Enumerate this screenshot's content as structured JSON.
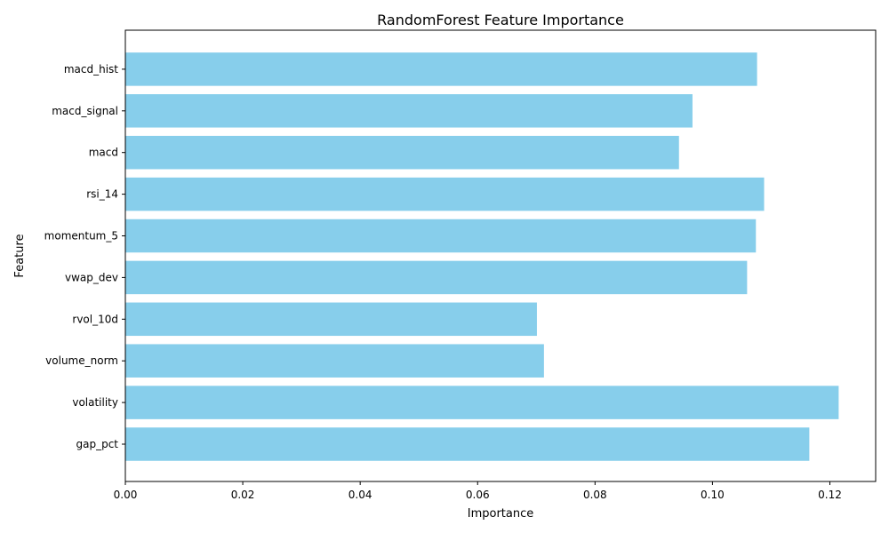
{
  "chart_data": {
    "type": "bar",
    "orientation": "horizontal",
    "title": "RandomForest Feature Importance",
    "xlabel": "Importance",
    "ylabel": "Feature",
    "categories": [
      "gap_pct",
      "volatility",
      "volume_norm",
      "rvol_10d",
      "vwap_dev",
      "momentum_5",
      "rsi_14",
      "macd",
      "macd_signal",
      "macd_hist"
    ],
    "values": [
      0.1165,
      0.1215,
      0.0713,
      0.0701,
      0.1059,
      0.1074,
      0.1088,
      0.0943,
      0.0966,
      0.1076
    ],
    "xlim": [
      0,
      0.1278
    ],
    "xticks": [
      0.0,
      0.02,
      0.04,
      0.06,
      0.08,
      0.1,
      0.12
    ],
    "xtick_labels": [
      "0.00",
      "0.02",
      "0.04",
      "0.06",
      "0.08",
      "0.10",
      "0.12"
    ],
    "grid": false,
    "bar_color": "#87ceeb"
  }
}
